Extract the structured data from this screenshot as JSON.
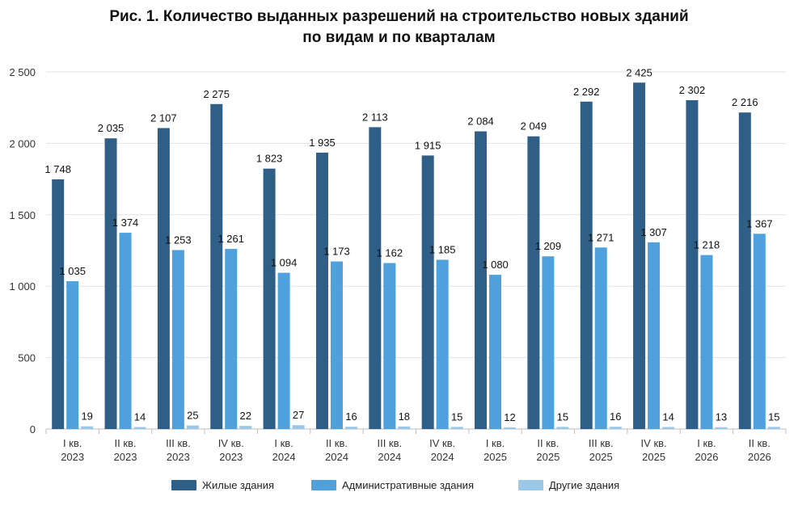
{
  "chart_data": {
    "type": "bar",
    "title_line1": "Рис. 1. Количество выданных разрешений на строительство новых зданий",
    "title_line2": "по видам и по кварталам",
    "categories": [
      {
        "quarter": "I кв.",
        "year": "2023"
      },
      {
        "quarter": "II кв.",
        "year": "2023"
      },
      {
        "quarter": "III кв.",
        "year": "2023"
      },
      {
        "quarter": "IV кв.",
        "year": "2023"
      },
      {
        "quarter": "I кв.",
        "year": "2024"
      },
      {
        "quarter": "II кв.",
        "year": "2024"
      },
      {
        "quarter": "III кв.",
        "year": "2024"
      },
      {
        "quarter": "IV кв.",
        "year": "2024"
      },
      {
        "quarter": "I кв.",
        "year": "2025"
      },
      {
        "quarter": "II кв.",
        "year": "2025"
      },
      {
        "quarter": "III кв.",
        "year": "2025"
      },
      {
        "quarter": "IV кв.",
        "year": "2025"
      },
      {
        "quarter": "I кв.",
        "year": "2026"
      },
      {
        "quarter": "II кв.",
        "year": "2026"
      }
    ],
    "series": [
      {
        "name": "Жилые здания",
        "color": "#2f5f86",
        "values": [
          1748,
          2035,
          2107,
          2275,
          1823,
          1935,
          2113,
          1915,
          2084,
          2049,
          2292,
          2425,
          2302,
          2216
        ],
        "labels": [
          "1 748",
          "2 035",
          "2 107",
          "2 275",
          "1 823",
          "1 935",
          "2 113",
          "1 915",
          "2 084",
          "2 049",
          "2 292",
          "2 425",
          "2 302",
          "2 216"
        ]
      },
      {
        "name": "Административные здания",
        "color": "#4ea1dc",
        "values": [
          1035,
          1374,
          1253,
          1261,
          1094,
          1173,
          1162,
          1185,
          1080,
          1209,
          1271,
          1307,
          1218,
          1367
        ],
        "labels": [
          "1 035",
          "1 374",
          "1 253",
          "1 261",
          "1 094",
          "1 173",
          "1 162",
          "1 185",
          "1 080",
          "1 209",
          "1 271",
          "1 307",
          "1 218",
          "1 367"
        ]
      },
      {
        "name": "Другие здания",
        "color": "#9cc8e8",
        "values": [
          19,
          14,
          25,
          22,
          27,
          16,
          18,
          15,
          12,
          15,
          16,
          14,
          13,
          15
        ],
        "labels": [
          "19",
          "14",
          "25",
          "22",
          "27",
          "16",
          "18",
          "15",
          "12",
          "15",
          "16",
          "14",
          "13",
          "15"
        ]
      }
    ],
    "ylim": [
      0,
      2500
    ],
    "yticks": [
      0,
      500,
      1000,
      1500,
      2000,
      2500
    ],
    "ytick_labels": [
      "0",
      "500",
      "1 000",
      "1 500",
      "2 000",
      "2 500"
    ],
    "grid": true,
    "legend_position": "bottom"
  }
}
